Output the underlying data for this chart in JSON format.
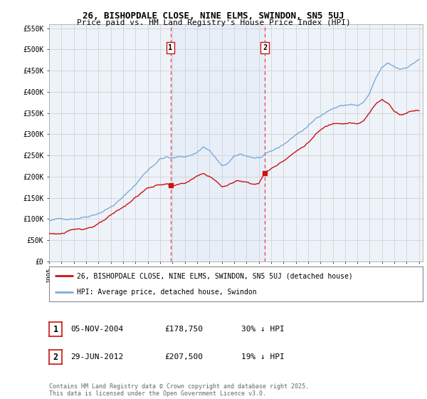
{
  "title": "26, BISHOPDALE CLOSE, NINE ELMS, SWINDON, SN5 5UJ",
  "subtitle": "Price paid vs. HM Land Registry's House Price Index (HPI)",
  "legend_line1": "26, BISHOPDALE CLOSE, NINE ELMS, SWINDON, SN5 5UJ (detached house)",
  "legend_line2": "HPI: Average price, detached house, Swindon",
  "footnote": "Contains HM Land Registry data © Crown copyright and database right 2025.\nThis data is licensed under the Open Government Licence v3.0.",
  "marker1_date": "05-NOV-2004",
  "marker1_price": "£178,750",
  "marker1_hpi": "30% ↓ HPI",
  "marker2_date": "29-JUN-2012",
  "marker2_price": "£207,500",
  "marker2_hpi": "19% ↓ HPI",
  "hpi_color": "#7aacda",
  "price_color": "#cc1111",
  "vline_color": "#dd3333",
  "ylim_min": 0,
  "ylim_max": 560000,
  "background_color": "#ffffff",
  "plot_bg": "#eef3fa",
  "grid_color": "#cccccc",
  "sale1_year": 2004.846,
  "sale1_price": 178750,
  "sale2_year": 2012.497,
  "sale2_price": 207500,
  "vline1_year": 2004.846,
  "vline2_year": 2012.497,
  "yticks": [
    0,
    50000,
    100000,
    150000,
    200000,
    250000,
    300000,
    350000,
    400000,
    450000,
    500000,
    550000
  ],
  "ytick_labels": [
    "£0",
    "£50K",
    "£100K",
    "£150K",
    "£200K",
    "£250K",
    "£300K",
    "£350K",
    "£400K",
    "£450K",
    "£500K",
    "£550K"
  ],
  "xtick_years": [
    1995,
    1996,
    1997,
    1998,
    1999,
    2000,
    2001,
    2002,
    2003,
    2004,
    2005,
    2006,
    2007,
    2008,
    2009,
    2010,
    2011,
    2012,
    2013,
    2014,
    2015,
    2016,
    2017,
    2018,
    2019,
    2020,
    2021,
    2022,
    2023,
    2024,
    2025
  ]
}
